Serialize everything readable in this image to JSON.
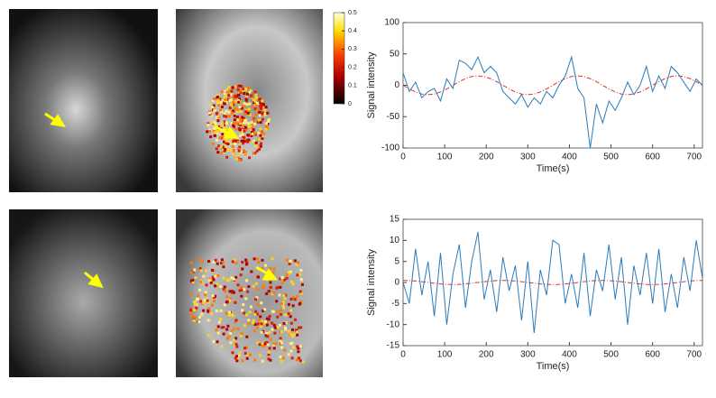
{
  "chart_data": [
    {
      "type": "line",
      "ylabel": "Signal intensity",
      "xlabel": "Time(s)",
      "x": [
        0,
        15,
        30,
        45,
        60,
        75,
        90,
        105,
        120,
        135,
        150,
        165,
        180,
        195,
        210,
        225,
        240,
        255,
        270,
        285,
        300,
        315,
        330,
        345,
        360,
        375,
        390,
        405,
        420,
        435,
        450,
        465,
        480,
        495,
        510,
        525,
        540,
        555,
        570,
        585,
        600,
        615,
        630,
        645,
        660,
        675,
        690,
        705,
        720
      ],
      "series": [
        {
          "color": "#2b7bba",
          "dashed": false,
          "values": [
            20,
            -10,
            5,
            -20,
            -10,
            -5,
            -25,
            10,
            -5,
            40,
            35,
            25,
            45,
            20,
            30,
            20,
            -10,
            -20,
            -30,
            -15,
            -35,
            -20,
            -30,
            -10,
            -20,
            0,
            15,
            45,
            -5,
            -20,
            -100,
            -30,
            -60,
            -25,
            -40,
            -20,
            5,
            -15,
            0,
            30,
            -10,
            15,
            -5,
            30,
            20,
            5,
            -10,
            10,
            0
          ]
        },
        {
          "color": "#e0302a",
          "dashed": true,
          "values": [
            0,
            -5.7,
            -10.6,
            -13.9,
            -15,
            -13.9,
            -10.6,
            -5.7,
            0,
            5.7,
            10.6,
            13.9,
            15,
            13.9,
            10.6,
            5.7,
            0,
            -5.7,
            -10.6,
            -13.9,
            -15,
            -13.9,
            -10.6,
            -5.7,
            0,
            5.7,
            10.6,
            13.9,
            15,
            13.9,
            10.6,
            5.7,
            0,
            -5.7,
            -10.6,
            -13.9,
            -15,
            -13.9,
            -10.6,
            -5.7,
            0,
            5.7,
            10.6,
            13.9,
            15,
            13.9,
            10.6,
            5.7,
            0
          ]
        }
      ],
      "xlim": [
        0,
        720
      ],
      "xticks": [
        0,
        100,
        200,
        300,
        400,
        500,
        600,
        700
      ],
      "ylim": [
        -100,
        100
      ],
      "yticks": [
        -100,
        -50,
        0,
        50,
        100
      ]
    },
    {
      "type": "line",
      "ylabel": "Signal intensity",
      "xlabel": "Time(s)",
      "x": [
        0,
        15,
        30,
        45,
        60,
        75,
        90,
        105,
        120,
        135,
        150,
        165,
        180,
        195,
        210,
        225,
        240,
        255,
        270,
        285,
        300,
        315,
        330,
        345,
        360,
        375,
        390,
        405,
        420,
        435,
        450,
        465,
        480,
        495,
        510,
        525,
        540,
        555,
        570,
        585,
        600,
        615,
        630,
        645,
        660,
        675,
        690,
        705,
        720
      ],
      "series": [
        {
          "color": "#2b7bba",
          "dashed": false,
          "values": [
            0,
            -5,
            8,
            -3,
            5,
            -8,
            7,
            -10,
            2,
            9,
            -6,
            5,
            12,
            -4,
            3,
            -7,
            6,
            -2,
            4,
            -9,
            5,
            -12,
            3,
            -3,
            10,
            9,
            -5,
            2,
            -6,
            7,
            -8,
            3,
            -2,
            9,
            -4,
            6,
            -10,
            4,
            -3,
            7,
            -5,
            8,
            -7,
            2,
            -6,
            6,
            -2,
            10,
            1
          ]
        },
        {
          "color": "#e0302a",
          "dashed": true,
          "values": [
            0.5,
            0.46,
            0.35,
            0.19,
            0,
            -0.19,
            -0.35,
            -0.46,
            -0.5,
            -0.46,
            -0.35,
            -0.19,
            0,
            0.19,
            0.35,
            0.46,
            0.5,
            0.46,
            0.35,
            0.19,
            0,
            -0.19,
            -0.35,
            -0.46,
            -0.5,
            -0.46,
            -0.35,
            -0.19,
            0,
            0.19,
            0.35,
            0.46,
            0.5,
            0.46,
            0.35,
            0.19,
            0,
            -0.19,
            -0.35,
            -0.46,
            -0.5,
            -0.46,
            -0.35,
            -0.19,
            0,
            0.19,
            0.35,
            0.46,
            0.5
          ]
        }
      ],
      "xlim": [
        0,
        720
      ],
      "xticks": [
        0,
        100,
        200,
        300,
        400,
        500,
        600,
        700
      ],
      "ylim": [
        -15,
        15
      ],
      "yticks": [
        -15,
        -10,
        -5,
        0,
        5,
        10,
        15
      ]
    }
  ],
  "colorbar": {
    "ticks": [
      0,
      0.1,
      0.2,
      0.3,
      0.4,
      0.5
    ]
  }
}
